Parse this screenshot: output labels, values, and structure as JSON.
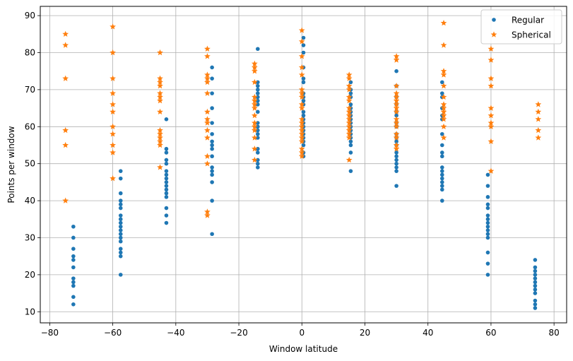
{
  "chart_data": {
    "type": "scatter",
    "title": "",
    "xlabel": "Window latitude",
    "ylabel": "Points per window",
    "xlim": [
      -83,
      84
    ],
    "ylim": [
      7,
      92.5
    ],
    "xticks": [
      -80,
      -60,
      -40,
      -20,
      0,
      20,
      40,
      60,
      80
    ],
    "yticks": [
      10,
      20,
      30,
      40,
      50,
      60,
      70,
      80,
      90
    ],
    "xtick_labels": [
      "−80",
      "−60",
      "−40",
      "−20",
      "0",
      "20",
      "40",
      "60",
      "80"
    ],
    "ytick_labels": [
      "10",
      "20",
      "30",
      "40",
      "50",
      "60",
      "70",
      "80",
      "90"
    ],
    "grid": true,
    "legend": "top-right",
    "series": [
      {
        "name": "Regular",
        "marker": "circle",
        "color": "#1f77b4",
        "points": [
          [
            -72.5,
            33
          ],
          [
            -72.5,
            30
          ],
          [
            -72.5,
            27
          ],
          [
            -72.5,
            25
          ],
          [
            -72.5,
            24
          ],
          [
            -72.5,
            22
          ],
          [
            -72.5,
            19
          ],
          [
            -72.5,
            18
          ],
          [
            -72.5,
            17
          ],
          [
            -72.5,
            14
          ],
          [
            -72.5,
            12
          ],
          [
            -57.5,
            48
          ],
          [
            -57.5,
            46
          ],
          [
            -57.5,
            42
          ],
          [
            -57.5,
            40
          ],
          [
            -57.5,
            39
          ],
          [
            -57.5,
            38
          ],
          [
            -57.5,
            36
          ],
          [
            -57.5,
            35
          ],
          [
            -57.5,
            34
          ],
          [
            -57.5,
            33
          ],
          [
            -57.5,
            32
          ],
          [
            -57.5,
            31
          ],
          [
            -57.5,
            30
          ],
          [
            -57.5,
            29
          ],
          [
            -57.5,
            27
          ],
          [
            -57.5,
            26
          ],
          [
            -57.5,
            25
          ],
          [
            -57.5,
            20
          ],
          [
            -43,
            62
          ],
          [
            -43,
            54
          ],
          [
            -43,
            53
          ],
          [
            -43,
            51
          ],
          [
            -43,
            50
          ],
          [
            -43,
            48
          ],
          [
            -43,
            47
          ],
          [
            -43,
            46
          ],
          [
            -43,
            45
          ],
          [
            -43,
            44
          ],
          [
            -43,
            43
          ],
          [
            -43,
            42
          ],
          [
            -43,
            41
          ],
          [
            -43,
            38
          ],
          [
            -43,
            36
          ],
          [
            -43,
            34
          ],
          [
            -28.5,
            76
          ],
          [
            -28.5,
            73
          ],
          [
            -28.5,
            69
          ],
          [
            -28.5,
            65
          ],
          [
            -28.5,
            61
          ],
          [
            -28.5,
            58
          ],
          [
            -28.5,
            56
          ],
          [
            -28.5,
            55
          ],
          [
            -28.5,
            54
          ],
          [
            -28.5,
            52
          ],
          [
            -28.5,
            49
          ],
          [
            -28.5,
            48
          ],
          [
            -28.5,
            47
          ],
          [
            -28.5,
            45
          ],
          [
            -28.5,
            40
          ],
          [
            -28.5,
            31
          ],
          [
            -14,
            81
          ],
          [
            -14,
            72
          ],
          [
            -14,
            71
          ],
          [
            -14,
            70
          ],
          [
            -14,
            69
          ],
          [
            -14,
            68
          ],
          [
            -14,
            67
          ],
          [
            -14,
            66
          ],
          [
            -14,
            64
          ],
          [
            -14,
            61
          ],
          [
            -14,
            60
          ],
          [
            -14,
            59
          ],
          [
            -14,
            58
          ],
          [
            -14,
            57
          ],
          [
            -14,
            54
          ],
          [
            -14,
            53
          ],
          [
            -14,
            51
          ],
          [
            -14,
            50
          ],
          [
            -14,
            49
          ],
          [
            0.5,
            84
          ],
          [
            0.5,
            82
          ],
          [
            0.5,
            80
          ],
          [
            0.5,
            76
          ],
          [
            0.5,
            73
          ],
          [
            0.5,
            72
          ],
          [
            0.5,
            69
          ],
          [
            0.5,
            68
          ],
          [
            0.5,
            67
          ],
          [
            0.5,
            66
          ],
          [
            0.5,
            64
          ],
          [
            0.5,
            63
          ],
          [
            0.5,
            62
          ],
          [
            0.5,
            61
          ],
          [
            0.5,
            60
          ],
          [
            0.5,
            59
          ],
          [
            0.5,
            58
          ],
          [
            0.5,
            57
          ],
          [
            0.5,
            56
          ],
          [
            0.5,
            55
          ],
          [
            0.5,
            53
          ],
          [
            0.5,
            52
          ],
          [
            15.5,
            72
          ],
          [
            15.5,
            70
          ],
          [
            15.5,
            69
          ],
          [
            15.5,
            68
          ],
          [
            15.5,
            66
          ],
          [
            15.5,
            65
          ],
          [
            15.5,
            64
          ],
          [
            15.5,
            63
          ],
          [
            15.5,
            62
          ],
          [
            15.5,
            61
          ],
          [
            15.5,
            60
          ],
          [
            15.5,
            59
          ],
          [
            15.5,
            58
          ],
          [
            15.5,
            57
          ],
          [
            15.5,
            56
          ],
          [
            15.5,
            55
          ],
          [
            15.5,
            53
          ],
          [
            15.5,
            48
          ],
          [
            30,
            75
          ],
          [
            30,
            71
          ],
          [
            30,
            68
          ],
          [
            30,
            66
          ],
          [
            30,
            64
          ],
          [
            30,
            63
          ],
          [
            30,
            61
          ],
          [
            30,
            60
          ],
          [
            30,
            58
          ],
          [
            30,
            57
          ],
          [
            30,
            56
          ],
          [
            30,
            55
          ],
          [
            30,
            53
          ],
          [
            30,
            52
          ],
          [
            30,
            51
          ],
          [
            30,
            50
          ],
          [
            30,
            49
          ],
          [
            30,
            48
          ],
          [
            30,
            44
          ],
          [
            44.5,
            72
          ],
          [
            44.5,
            69
          ],
          [
            44.5,
            68
          ],
          [
            44.5,
            65
          ],
          [
            44.5,
            63
          ],
          [
            44.5,
            62
          ],
          [
            44.5,
            58
          ],
          [
            44.5,
            55
          ],
          [
            44.5,
            53
          ],
          [
            44.5,
            52
          ],
          [
            44.5,
            49
          ],
          [
            44.5,
            48
          ],
          [
            44.5,
            47
          ],
          [
            44.5,
            46
          ],
          [
            44.5,
            45
          ],
          [
            44.5,
            44
          ],
          [
            44.5,
            43
          ],
          [
            44.5,
            40
          ],
          [
            59,
            47
          ],
          [
            59,
            44
          ],
          [
            59,
            41
          ],
          [
            59,
            39
          ],
          [
            59,
            38
          ],
          [
            59,
            36
          ],
          [
            59,
            35
          ],
          [
            59,
            34
          ],
          [
            59,
            33
          ],
          [
            59,
            32
          ],
          [
            59,
            31
          ],
          [
            59,
            30
          ],
          [
            59,
            26
          ],
          [
            59,
            23
          ],
          [
            59,
            20
          ],
          [
            74,
            24
          ],
          [
            74,
            22
          ],
          [
            74,
            21
          ],
          [
            74,
            20
          ],
          [
            74,
            19
          ],
          [
            74,
            18
          ],
          [
            74,
            17
          ],
          [
            74,
            16
          ],
          [
            74,
            15
          ],
          [
            74,
            13
          ],
          [
            74,
            12
          ],
          [
            74,
            11
          ]
        ]
      },
      {
        "name": "Spherical",
        "marker": "star",
        "color": "#ff7f0e",
        "points": [
          [
            -75,
            85
          ],
          [
            -75,
            82
          ],
          [
            -75,
            73
          ],
          [
            -75,
            59
          ],
          [
            -75,
            55
          ],
          [
            -75,
            40
          ],
          [
            -60,
            87
          ],
          [
            -60,
            80
          ],
          [
            -60,
            73
          ],
          [
            -60,
            69
          ],
          [
            -60,
            66
          ],
          [
            -60,
            64
          ],
          [
            -60,
            60
          ],
          [
            -60,
            58
          ],
          [
            -60,
            55
          ],
          [
            -60,
            53
          ],
          [
            -60,
            46
          ],
          [
            -45,
            80
          ],
          [
            -45,
            73
          ],
          [
            -45,
            72
          ],
          [
            -45,
            71
          ],
          [
            -45,
            69
          ],
          [
            -45,
            68
          ],
          [
            -45,
            67
          ],
          [
            -45,
            64
          ],
          [
            -45,
            59
          ],
          [
            -45,
            58
          ],
          [
            -45,
            57
          ],
          [
            -45,
            56
          ],
          [
            -45,
            55
          ],
          [
            -45,
            49
          ],
          [
            -30,
            81
          ],
          [
            -30,
            79
          ],
          [
            -30,
            74
          ],
          [
            -30,
            73
          ],
          [
            -30,
            72
          ],
          [
            -30,
            69
          ],
          [
            -30,
            64
          ],
          [
            -30,
            62
          ],
          [
            -30,
            61
          ],
          [
            -30,
            59
          ],
          [
            -30,
            57
          ],
          [
            -30,
            52
          ],
          [
            -30,
            50
          ],
          [
            -30,
            37
          ],
          [
            -30,
            36
          ],
          [
            -15,
            77
          ],
          [
            -15,
            76
          ],
          [
            -15,
            75
          ],
          [
            -15,
            72
          ],
          [
            -15,
            68
          ],
          [
            -15,
            67
          ],
          [
            -15,
            66
          ],
          [
            -15,
            65
          ],
          [
            -15,
            63
          ],
          [
            -15,
            61
          ],
          [
            -15,
            60
          ],
          [
            -15,
            59
          ],
          [
            -15,
            57
          ],
          [
            -15,
            54
          ],
          [
            -15,
            51
          ],
          [
            0,
            86
          ],
          [
            0,
            83
          ],
          [
            0,
            79
          ],
          [
            0,
            76
          ],
          [
            0,
            74
          ],
          [
            0,
            70
          ],
          [
            0,
            69
          ],
          [
            0,
            68
          ],
          [
            0,
            66
          ],
          [
            0,
            65
          ],
          [
            0,
            62
          ],
          [
            0,
            61
          ],
          [
            0,
            60
          ],
          [
            0,
            59
          ],
          [
            0,
            58
          ],
          [
            0,
            57
          ],
          [
            0,
            56
          ],
          [
            0,
            54
          ],
          [
            0,
            53
          ],
          [
            0,
            52
          ],
          [
            15,
            74
          ],
          [
            15,
            73
          ],
          [
            15,
            71
          ],
          [
            15,
            70
          ],
          [
            15,
            68
          ],
          [
            15,
            67
          ],
          [
            15,
            65
          ],
          [
            15,
            64
          ],
          [
            15,
            63
          ],
          [
            15,
            62
          ],
          [
            15,
            61
          ],
          [
            15,
            60
          ],
          [
            15,
            59
          ],
          [
            15,
            58
          ],
          [
            15,
            57
          ],
          [
            15,
            51
          ],
          [
            30,
            79
          ],
          [
            30,
            78
          ],
          [
            30,
            71
          ],
          [
            30,
            69
          ],
          [
            30,
            68
          ],
          [
            30,
            67
          ],
          [
            30,
            66
          ],
          [
            30,
            65
          ],
          [
            30,
            64
          ],
          [
            30,
            62
          ],
          [
            30,
            61
          ],
          [
            30,
            60
          ],
          [
            30,
            58
          ],
          [
            30,
            57
          ],
          [
            30,
            55
          ],
          [
            30,
            54
          ],
          [
            45,
            88
          ],
          [
            45,
            82
          ],
          [
            45,
            75
          ],
          [
            45,
            74
          ],
          [
            45,
            71
          ],
          [
            45,
            68
          ],
          [
            45,
            66
          ],
          [
            45,
            65
          ],
          [
            45,
            64
          ],
          [
            45,
            63
          ],
          [
            45,
            62
          ],
          [
            45,
            60
          ],
          [
            45,
            57
          ],
          [
            60,
            81
          ],
          [
            60,
            78
          ],
          [
            60,
            73
          ],
          [
            60,
            71
          ],
          [
            60,
            65
          ],
          [
            60,
            63
          ],
          [
            60,
            61
          ],
          [
            60,
            60
          ],
          [
            60,
            56
          ],
          [
            60,
            48
          ],
          [
            75,
            66
          ],
          [
            75,
            64
          ],
          [
            75,
            62
          ],
          [
            75,
            59
          ],
          [
            75,
            57
          ]
        ]
      }
    ]
  }
}
